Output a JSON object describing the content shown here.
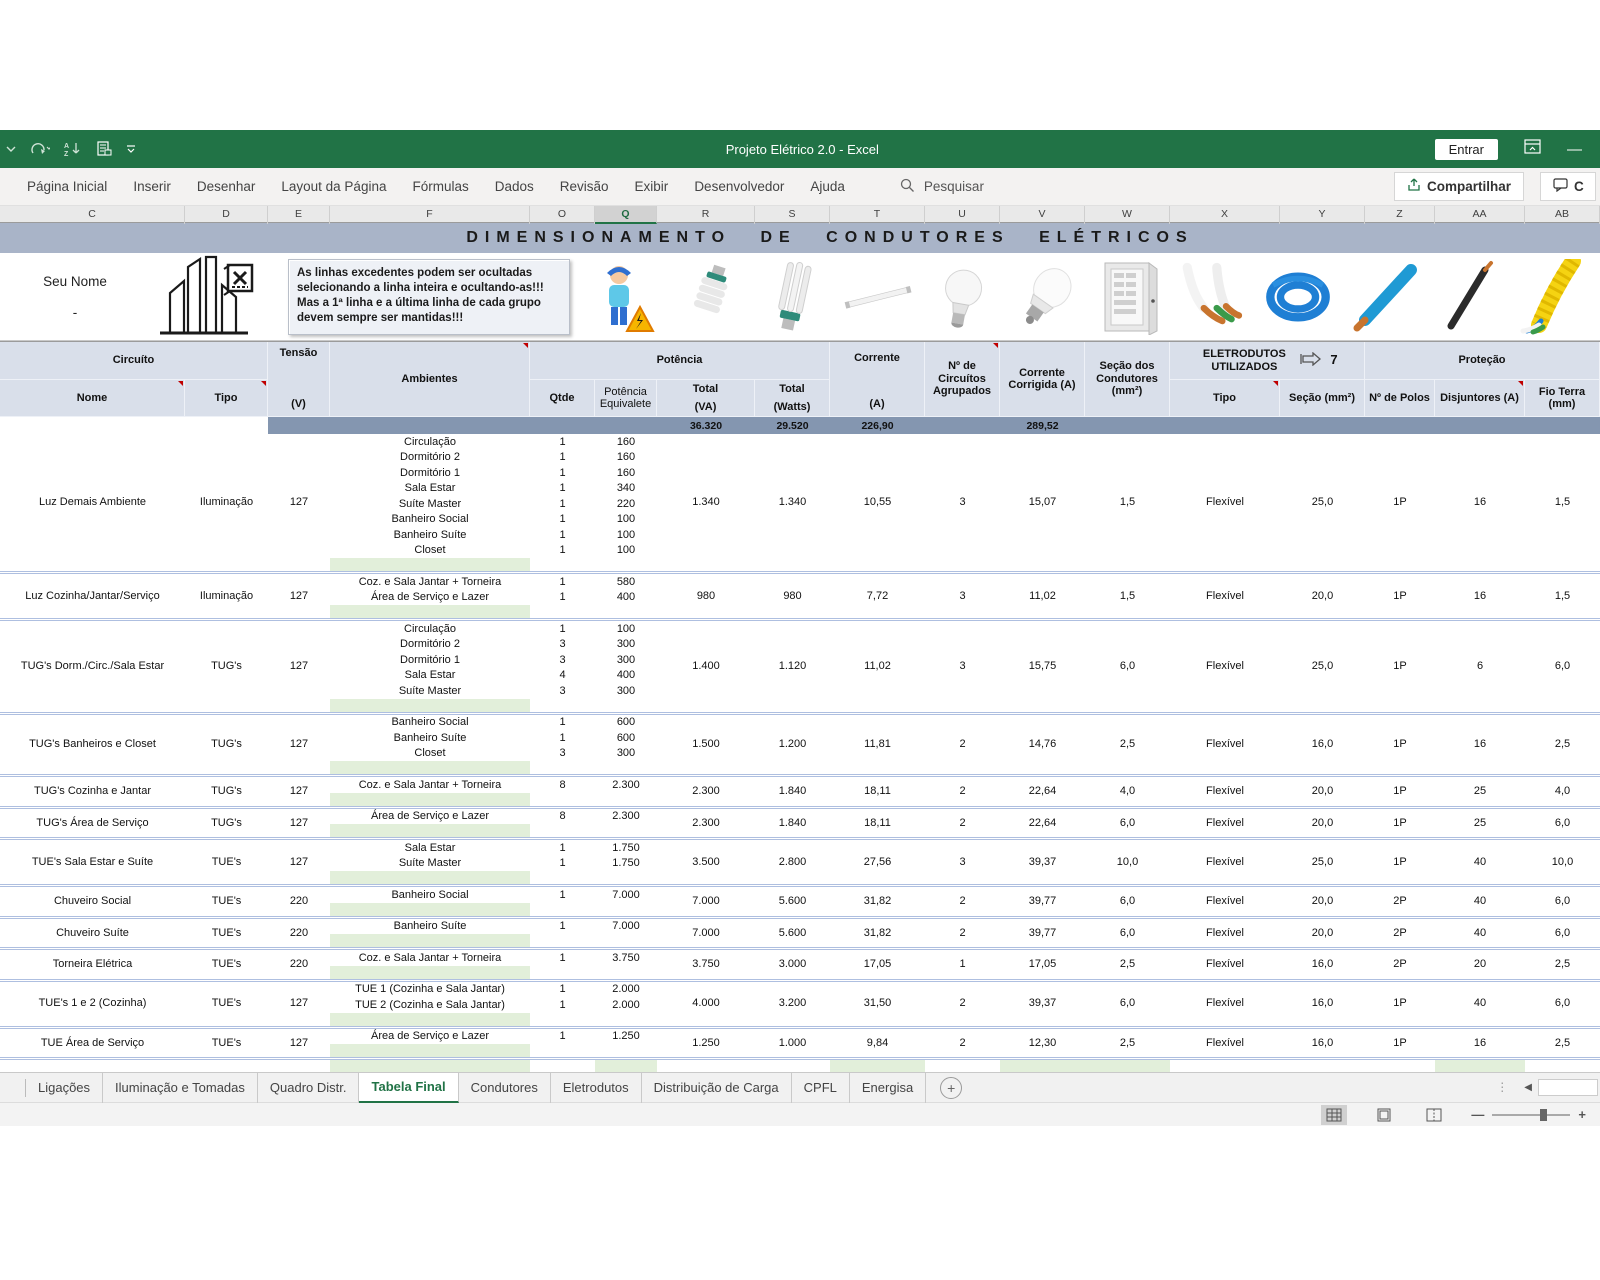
{
  "window": {
    "title": "Projeto Elétrico 2.0  -  Excel",
    "entrar_label": "Entrar"
  },
  "ribbon": {
    "tabs": [
      "Página Inicial",
      "Inserir",
      "Desenhar",
      "Layout da Página",
      "Fórmulas",
      "Dados",
      "Revisão",
      "Exibir",
      "Desenvolvedor",
      "Ajuda"
    ],
    "search_label": "Pesquisar",
    "share_label": "Compartilhar",
    "comment_label": "C"
  },
  "columns": {
    "letters": [
      "C",
      "D",
      "E",
      "F",
      "O",
      "Q",
      "R",
      "S",
      "T",
      "U",
      "V",
      "W",
      "X",
      "Y",
      "Z",
      "AA",
      "AB"
    ],
    "selected": "Q"
  },
  "sheet": {
    "title": "DIMENSIONAMENTO DE CONDUTORES ELÉTRICOS",
    "owner_name": "Seu Nome",
    "owner_dash": "-",
    "note": "As linhas excedentes podem ser ocultadas\nselecionando a linha inteira e ocultando-as!!!\nMas a 1ª linha e a última linha de cada grupo\ndevem sempre ser mantidas!!!",
    "cliparts": [
      "electrician-warning",
      "cfl-spiral-bulb",
      "cfl-tube-bulb",
      "fluorescent-tube",
      "incandescent-bulb",
      "led-bulb",
      "distribution-panel",
      "stripped-cables",
      "blue-cable-coil",
      "blue-cable",
      "black-cable",
      "conduit-with-wires"
    ]
  },
  "table": {
    "header": {
      "circuito": "Circuíto",
      "nome": "Nome",
      "tipo": "Tipo",
      "tensao": "Tensão",
      "tensao_unit": "(V)",
      "ambientes": "Ambientes",
      "potencia": "Potência",
      "qtde": "Qtde",
      "pot_equiv": "Potência Equivalete",
      "total_va": "Total",
      "total_va_unit": "(VA)",
      "total_w": "Total",
      "total_w_unit": "(Watts)",
      "corrente": "Corrente",
      "corrente_unit": "(A)",
      "n_circuitos": "Nº de Circuítos Agrupados",
      "corrente_corrigida": "Corrente Corrigida (A)",
      "secao_condutores": "Seção dos Condutores (mm²)",
      "eletrodutos": "ELETRODUTOS UTILIZADOS",
      "eletrodutos_num": "7",
      "eletroduto_tipo": "Tipo",
      "eletroduto_secao": "Seção (mm²)",
      "protecao": "Proteção",
      "polos": "Nº de Polos",
      "disjuntores": "Disjuntores (A)",
      "fio_terra": "Fio Terra (mm)"
    },
    "totals": {
      "total_va": "36.320",
      "total_watts": "29.520",
      "corrente": "226,90",
      "corrente_corrigida": "289,52"
    },
    "rows": [
      {
        "name": "Luz Demais Ambiente",
        "tipo": "Iluminação",
        "tensao": "127",
        "amb": [
          [
            "Circulação",
            "1",
            "160"
          ],
          [
            "Dormitório 2",
            "1",
            "160"
          ],
          [
            "Dormitório 1",
            "1",
            "160"
          ],
          [
            "Sala Estar",
            "1",
            "340"
          ],
          [
            "Suíte Master",
            "1",
            "220"
          ],
          [
            "Banheiro Social",
            "1",
            "100"
          ],
          [
            "Banheiro Suíte",
            "1",
            "100"
          ],
          [
            "Closet",
            "1",
            "100"
          ]
        ],
        "va": "1.340",
        "w": "1.340",
        "corr": "10,55",
        "ncirc": "3",
        "corrig": "15,07",
        "secao": "1,5",
        "tipo_el": "Flexível",
        "sec_el": "25,0",
        "polos": "1P",
        "disj": "16",
        "terra": "1,5"
      },
      {
        "name": "Luz Cozinha/Jantar/Serviço",
        "tipo": "Iluminação",
        "tensao": "127",
        "amb": [
          [
            "Coz. e Sala Jantar + Torneira",
            "1",
            "580"
          ],
          [
            "Área de Serviço e Lazer",
            "1",
            "400"
          ]
        ],
        "va": "980",
        "w": "980",
        "corr": "7,72",
        "ncirc": "3",
        "corrig": "11,02",
        "secao": "1,5",
        "tipo_el": "Flexível",
        "sec_el": "20,0",
        "polos": "1P",
        "disj": "16",
        "terra": "1,5"
      },
      {
        "name": "TUG's Dorm./Circ./Sala Estar",
        "tipo": "TUG's",
        "tensao": "127",
        "amb": [
          [
            "Circulação",
            "1",
            "100"
          ],
          [
            "Dormitório 2",
            "3",
            "300"
          ],
          [
            "Dormitório 1",
            "3",
            "300"
          ],
          [
            "Sala Estar",
            "4",
            "400"
          ],
          [
            "Suíte Master",
            "3",
            "300"
          ]
        ],
        "va": "1.400",
        "w": "1.120",
        "corr": "11,02",
        "ncirc": "3",
        "corrig": "15,75",
        "secao": "6,0",
        "tipo_el": "Flexível",
        "sec_el": "25,0",
        "polos": "1P",
        "disj": "6",
        "terra": "6,0"
      },
      {
        "name": "TUG's Banheiros e Closet",
        "tipo": "TUG's",
        "tensao": "127",
        "amb": [
          [
            "Banheiro Social",
            "1",
            "600"
          ],
          [
            "Banheiro Suíte",
            "1",
            "600"
          ],
          [
            "Closet",
            "3",
            "300"
          ]
        ],
        "va": "1.500",
        "w": "1.200",
        "corr": "11,81",
        "ncirc": "2",
        "corrig": "14,76",
        "secao": "2,5",
        "tipo_el": "Flexível",
        "sec_el": "16,0",
        "polos": "1P",
        "disj": "16",
        "terra": "2,5"
      },
      {
        "name": "TUG's Cozinha e Jantar",
        "tipo": "TUG's",
        "tensao": "127",
        "amb": [
          [
            "Coz. e Sala Jantar + Torneira",
            "8",
            "2.300"
          ]
        ],
        "va": "2.300",
        "w": "1.840",
        "corr": "18,11",
        "ncirc": "2",
        "corrig": "22,64",
        "secao": "4,0",
        "tipo_el": "Flexível",
        "sec_el": "20,0",
        "polos": "1P",
        "disj": "25",
        "terra": "4,0"
      },
      {
        "name": "TUG's Área de Serviço",
        "tipo": "TUG's",
        "tensao": "127",
        "amb": [
          [
            "Área de Serviço e Lazer",
            "8",
            "2.300"
          ]
        ],
        "va": "2.300",
        "w": "1.840",
        "corr": "18,11",
        "ncirc": "2",
        "corrig": "22,64",
        "secao": "6,0",
        "tipo_el": "Flexível",
        "sec_el": "20,0",
        "polos": "1P",
        "disj": "25",
        "terra": "6,0"
      },
      {
        "name": "TUE's Sala Estar e Suíte",
        "tipo": "TUE's",
        "tensao": "127",
        "amb": [
          [
            "Sala Estar",
            "1",
            "1.750"
          ],
          [
            "Suíte Master",
            "1",
            "1.750"
          ]
        ],
        "va": "3.500",
        "w": "2.800",
        "corr": "27,56",
        "ncirc": "3",
        "corrig": "39,37",
        "secao": "10,0",
        "tipo_el": "Flexível",
        "sec_el": "25,0",
        "polos": "1P",
        "disj": "40",
        "terra": "10,0"
      },
      {
        "name": "Chuveiro Social",
        "tipo": "TUE's",
        "tensao": "220",
        "amb": [
          [
            "Banheiro Social",
            "1",
            "7.000"
          ]
        ],
        "va": "7.000",
        "w": "5.600",
        "corr": "31,82",
        "ncirc": "2",
        "corrig": "39,77",
        "secao": "6,0",
        "tipo_el": "Flexível",
        "sec_el": "20,0",
        "polos": "2P",
        "disj": "40",
        "terra": "6,0"
      },
      {
        "name": "Chuveiro Suíte",
        "tipo": "TUE's",
        "tensao": "220",
        "amb": [
          [
            "Banheiro Suíte",
            "1",
            "7.000"
          ]
        ],
        "va": "7.000",
        "w": "5.600",
        "corr": "31,82",
        "ncirc": "2",
        "corrig": "39,77",
        "secao": "6,0",
        "tipo_el": "Flexível",
        "sec_el": "20,0",
        "polos": "2P",
        "disj": "40",
        "terra": "6,0"
      },
      {
        "name": "Torneira Elétrica",
        "tipo": "TUE's",
        "tensao": "220",
        "amb": [
          [
            "Coz. e Sala Jantar + Torneira",
            "1",
            "3.750"
          ]
        ],
        "va": "3.750",
        "w": "3.000",
        "corr": "17,05",
        "ncirc": "1",
        "corrig": "17,05",
        "secao": "2,5",
        "tipo_el": "Flexível",
        "sec_el": "16,0",
        "polos": "2P",
        "disj": "20",
        "terra": "2,5"
      },
      {
        "name": "TUE's 1 e 2 (Cozinha)",
        "tipo": "TUE's",
        "tensao": "127",
        "amb": [
          [
            "TUE 1 (Cozinha e Sala Jantar)",
            "1",
            "2.000"
          ],
          [
            "TUE 2 (Cozinha e Sala Jantar)",
            "1",
            "2.000"
          ]
        ],
        "va": "4.000",
        "w": "3.200",
        "corr": "31,50",
        "ncirc": "2",
        "corrig": "39,37",
        "secao": "6,0",
        "tipo_el": "Flexível",
        "sec_el": "16,0",
        "polos": "1P",
        "disj": "40",
        "terra": "6,0"
      },
      {
        "name": "TUE Área de Serviço",
        "tipo": "TUE's",
        "tensao": "127",
        "amb": [
          [
            "Área de Serviço e Lazer",
            "1",
            "1.250"
          ]
        ],
        "va": "1.250",
        "w": "1.000",
        "corr": "9,84",
        "ncirc": "2",
        "corrig": "12,30",
        "secao": "2,5",
        "tipo_el": "Flexível",
        "sec_el": "16,0",
        "polos": "1P",
        "disj": "16",
        "terra": "2,5"
      }
    ]
  },
  "sheet_tabs": {
    "tabs": [
      "Ligações",
      "Iluminação e Tomadas",
      "Quadro Distr.",
      "Tabela Final",
      "Condutores",
      "Eletrodutos",
      "Distribuição de Carga",
      "CPFL",
      "Energisa"
    ],
    "active": "Tabela Final",
    "add_label": "+"
  },
  "statusbar": {
    "zoom_out": "—",
    "zoom_in": "+"
  },
  "colors": {
    "excel_green": "#217346",
    "band_blue": "#a9b4c8",
    "header_bg": "#d9dfea",
    "totals_bg": "#8496b0",
    "highlight_green": "#e2efda",
    "separator": "#aebfe0"
  }
}
